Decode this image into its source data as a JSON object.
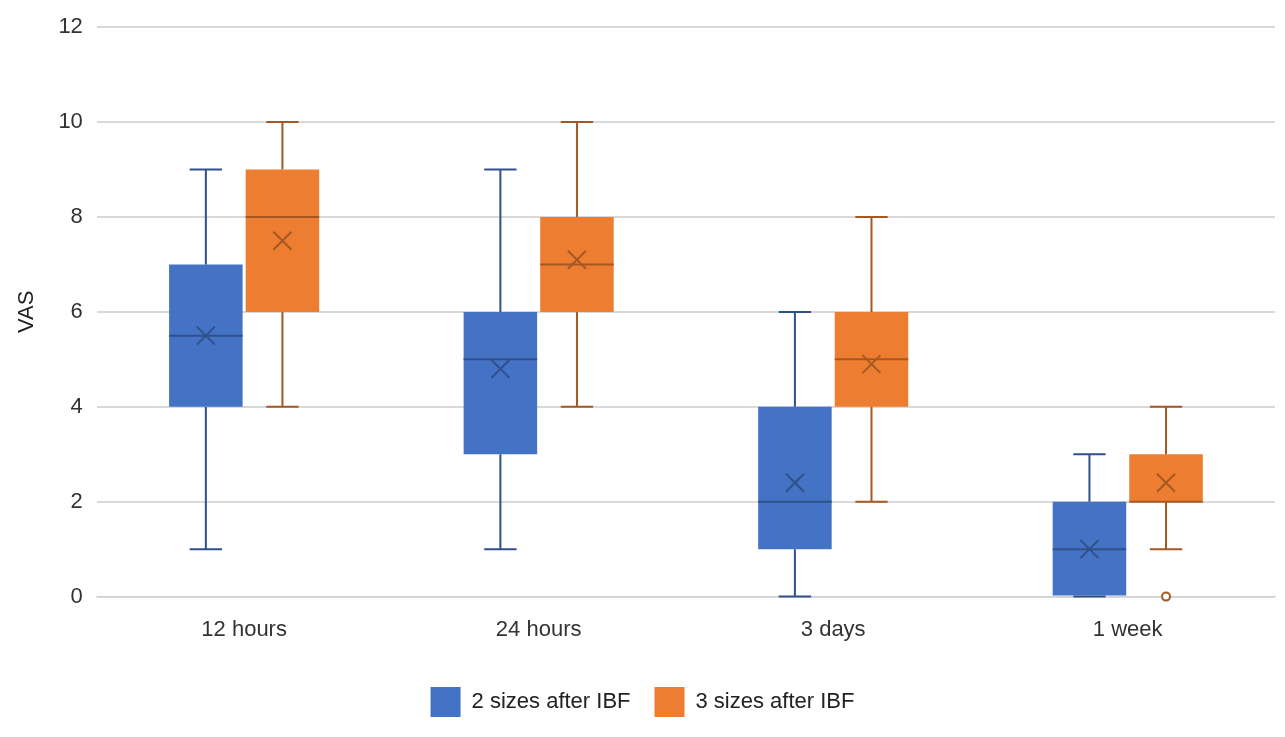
{
  "chart_data": {
    "type": "box",
    "ylabel": "VAS",
    "categories": [
      "12 hours",
      "24 hours",
      "3 days",
      "1 week"
    ],
    "ylim": [
      0,
      12
    ],
    "yticks": [
      0,
      2,
      4,
      6,
      8,
      10,
      12
    ],
    "grid": "y",
    "legend": "bottom",
    "series": [
      {
        "name": "2 sizes after IBF",
        "color": "#4472c4",
        "boxes": [
          {
            "low": 1,
            "q1": 4,
            "median": 5.5,
            "q3": 7,
            "high": 9,
            "mean": 5.5
          },
          {
            "low": 1,
            "q1": 3,
            "median": 5,
            "q3": 6,
            "high": 9,
            "mean": 4.8
          },
          {
            "low": 0,
            "q1": 1,
            "median": 2,
            "q3": 4,
            "high": 6,
            "mean": 2.4
          },
          {
            "low": 0,
            "q1": 0,
            "median": 1,
            "q3": 2,
            "high": 3,
            "mean": 1
          }
        ]
      },
      {
        "name": "3 sizes after IBF",
        "color": "#ed7d31",
        "boxes": [
          {
            "low": 4,
            "q1": 6,
            "median": 8,
            "q3": 9,
            "high": 10,
            "mean": 7.5
          },
          {
            "low": 4,
            "q1": 6,
            "median": 7,
            "q3": 8,
            "high": 10,
            "mean": 7.1
          },
          {
            "low": 2,
            "q1": 4,
            "median": 5,
            "q3": 6,
            "high": 8,
            "mean": 4.9
          },
          {
            "low": 1,
            "q1": 2,
            "median": 2,
            "q3": 3,
            "high": 4,
            "mean": 2.4,
            "outliers": [
              0
            ]
          }
        ]
      }
    ]
  }
}
